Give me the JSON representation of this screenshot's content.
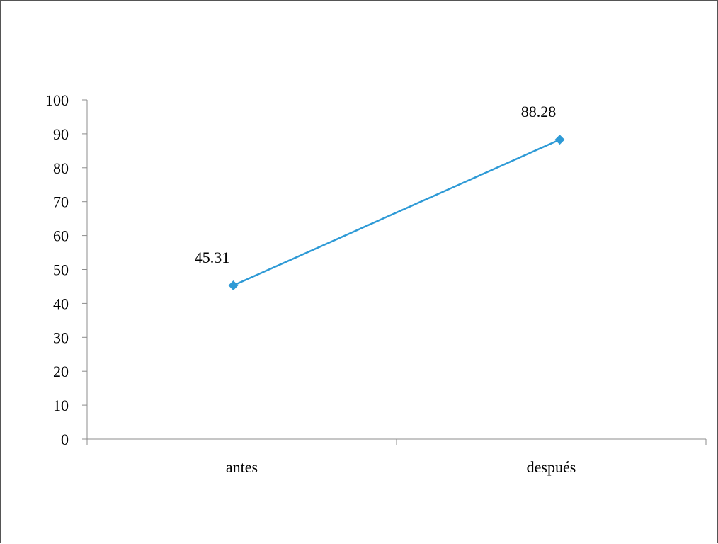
{
  "chart_data": {
    "type": "line",
    "categories": [
      "antes",
      "después"
    ],
    "series": [
      {
        "values": [
          45.31,
          88.28
        ],
        "color": "#2e9ad6",
        "marker": "diamond"
      }
    ],
    "data_labels": [
      "45.31",
      "88.28"
    ],
    "y_ticks": [
      "0",
      "10",
      "20",
      "30",
      "40",
      "50",
      "60",
      "70",
      "80",
      "90",
      "100"
    ],
    "ylim": [
      0,
      100
    ],
    "grid": false,
    "legend": "none",
    "title": "",
    "xlabel": "",
    "ylabel": ""
  }
}
